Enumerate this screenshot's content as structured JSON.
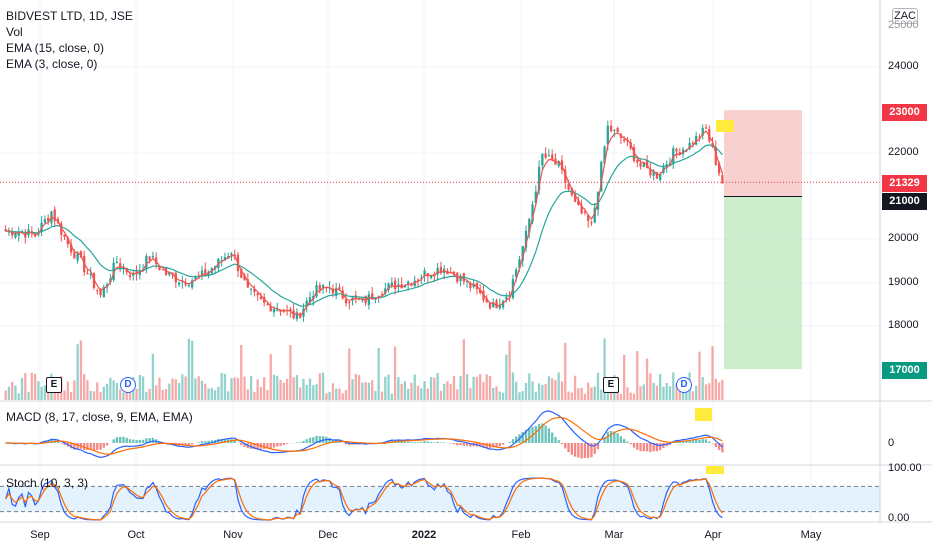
{
  "legend": {
    "title": "BIDVEST LTD, 1D, JSE",
    "line2": "Vol",
    "line3": "EMA (15, close, 0)",
    "line4": "EMA (3, close, 0)"
  },
  "currency": "ZAC",
  "macd_title": "MACD (8, 17, close, 9, EMA, EMA)",
  "stoch_title": "Stoch (10, 3, 3)",
  "price_axis_labels": [
    "24000",
    "22000",
    "20000",
    "19000",
    "18000"
  ],
  "price_axis_top_partial": "25000",
  "macd_axis_labels": [
    "0"
  ],
  "stoch_axis_labels": [
    "100.00",
    "0.00"
  ],
  "price_tags": {
    "target": "23000",
    "current": "21329",
    "entry": "21000",
    "stop": "17000"
  },
  "x_axis_labels": [
    {
      "label": "Sep",
      "bold": false
    },
    {
      "label": "Oct",
      "bold": false
    },
    {
      "label": "Nov",
      "bold": false
    },
    {
      "label": "Dec",
      "bold": false
    },
    {
      "label": "2022",
      "bold": true
    },
    {
      "label": "Feb",
      "bold": false
    },
    {
      "label": "Mar",
      "bold": false
    },
    {
      "label": "Apr",
      "bold": false
    },
    {
      "label": "May",
      "bold": false
    }
  ],
  "events": [
    "E",
    "D",
    "E",
    "D"
  ],
  "colors": {
    "up": "#26a69a",
    "down": "#ef5350",
    "ema15": "#26a69a",
    "ema3": "#ef5350",
    "macd_line": "#2962ff",
    "signal_line": "#ff6d00",
    "stoch_k": "#2962ff",
    "stoch_d": "#ff6d00",
    "stoch_band": "#e3f2fd",
    "target_zone": "#f8c8c8",
    "stop_zone": "#c8ebc8",
    "highlight": "#ffeb3b"
  },
  "chart_data": {
    "type": "candlestick",
    "title": "BIDVEST LTD, 1D, JSE",
    "x_range": [
      "2021-08-23",
      "2022-05-10"
    ],
    "price_scale": "linear",
    "price_ylim": [
      16500,
      25200
    ],
    "weekly_closes": [
      20200,
      20100,
      20650,
      19900,
      19350,
      18700,
      19500,
      19150,
      19600,
      19200,
      19050,
      19100,
      19400,
      19750,
      18800,
      18500,
      18400,
      18200,
      18800,
      18900,
      18650,
      18550,
      18800,
      18950,
      19050,
      19250,
      19350,
      19100,
      18800,
      18450,
      18800,
      20100,
      21950,
      21700,
      20800,
      20300,
      22600,
      22300,
      21700,
      21500,
      22000,
      22200,
      22550,
      21329
    ],
    "position_tool": {
      "target": 23000,
      "entry": 21000,
      "stop": 17000,
      "current": 21329
    },
    "volume_scale": "relative",
    "macd_zero_line": 0,
    "stoch_ylim": [
      0,
      100
    ],
    "stoch_bands": [
      20,
      80
    ]
  }
}
